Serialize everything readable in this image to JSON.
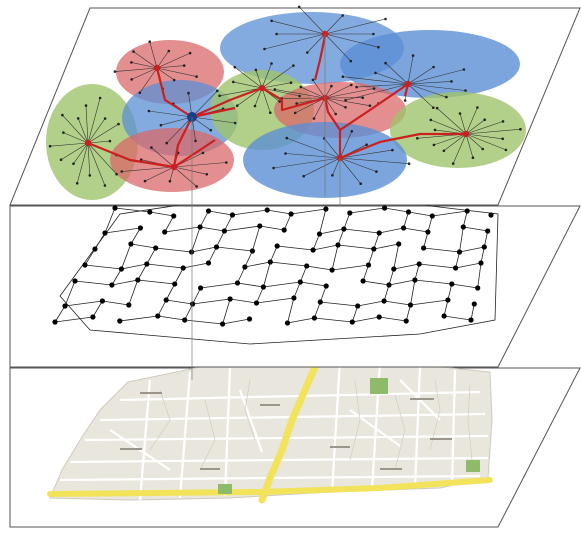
{
  "figure": {
    "layers": [
      {
        "id": "cluster-overlay",
        "kind": "clustered-coverage"
      },
      {
        "id": "street-graph",
        "kind": "node-link-graph"
      },
      {
        "id": "street-map",
        "kind": "city-map"
      }
    ],
    "colors": {
      "frame": "#555555",
      "cluster_red": "#d9686a",
      "cluster_blue": "#5b8fd4",
      "cluster_green": "#9fc46b",
      "link_red": "#cc1f1f",
      "center_dark": "#1a3f8a",
      "graph_node": "#000000",
      "map_block": "#e9e6dd",
      "map_street": "#ffffff",
      "map_water": "#a9cbe8",
      "map_highway": "#f2e35a",
      "map_park": "#8dbb6a"
    },
    "clusters": [
      {
        "color": "blue",
        "hub": "top"
      },
      {
        "color": "red",
        "hub": "upper-left"
      },
      {
        "color": "blue",
        "hub": "upper-right"
      },
      {
        "color": "green",
        "hub": "left"
      },
      {
        "color": "blue",
        "hub": "center-dark"
      },
      {
        "color": "green",
        "hub": "center"
      },
      {
        "color": "red",
        "hub": "center-right"
      },
      {
        "color": "green",
        "hub": "right"
      },
      {
        "color": "red",
        "hub": "lower-left"
      },
      {
        "color": "blue",
        "hub": "lower-center"
      }
    ]
  }
}
